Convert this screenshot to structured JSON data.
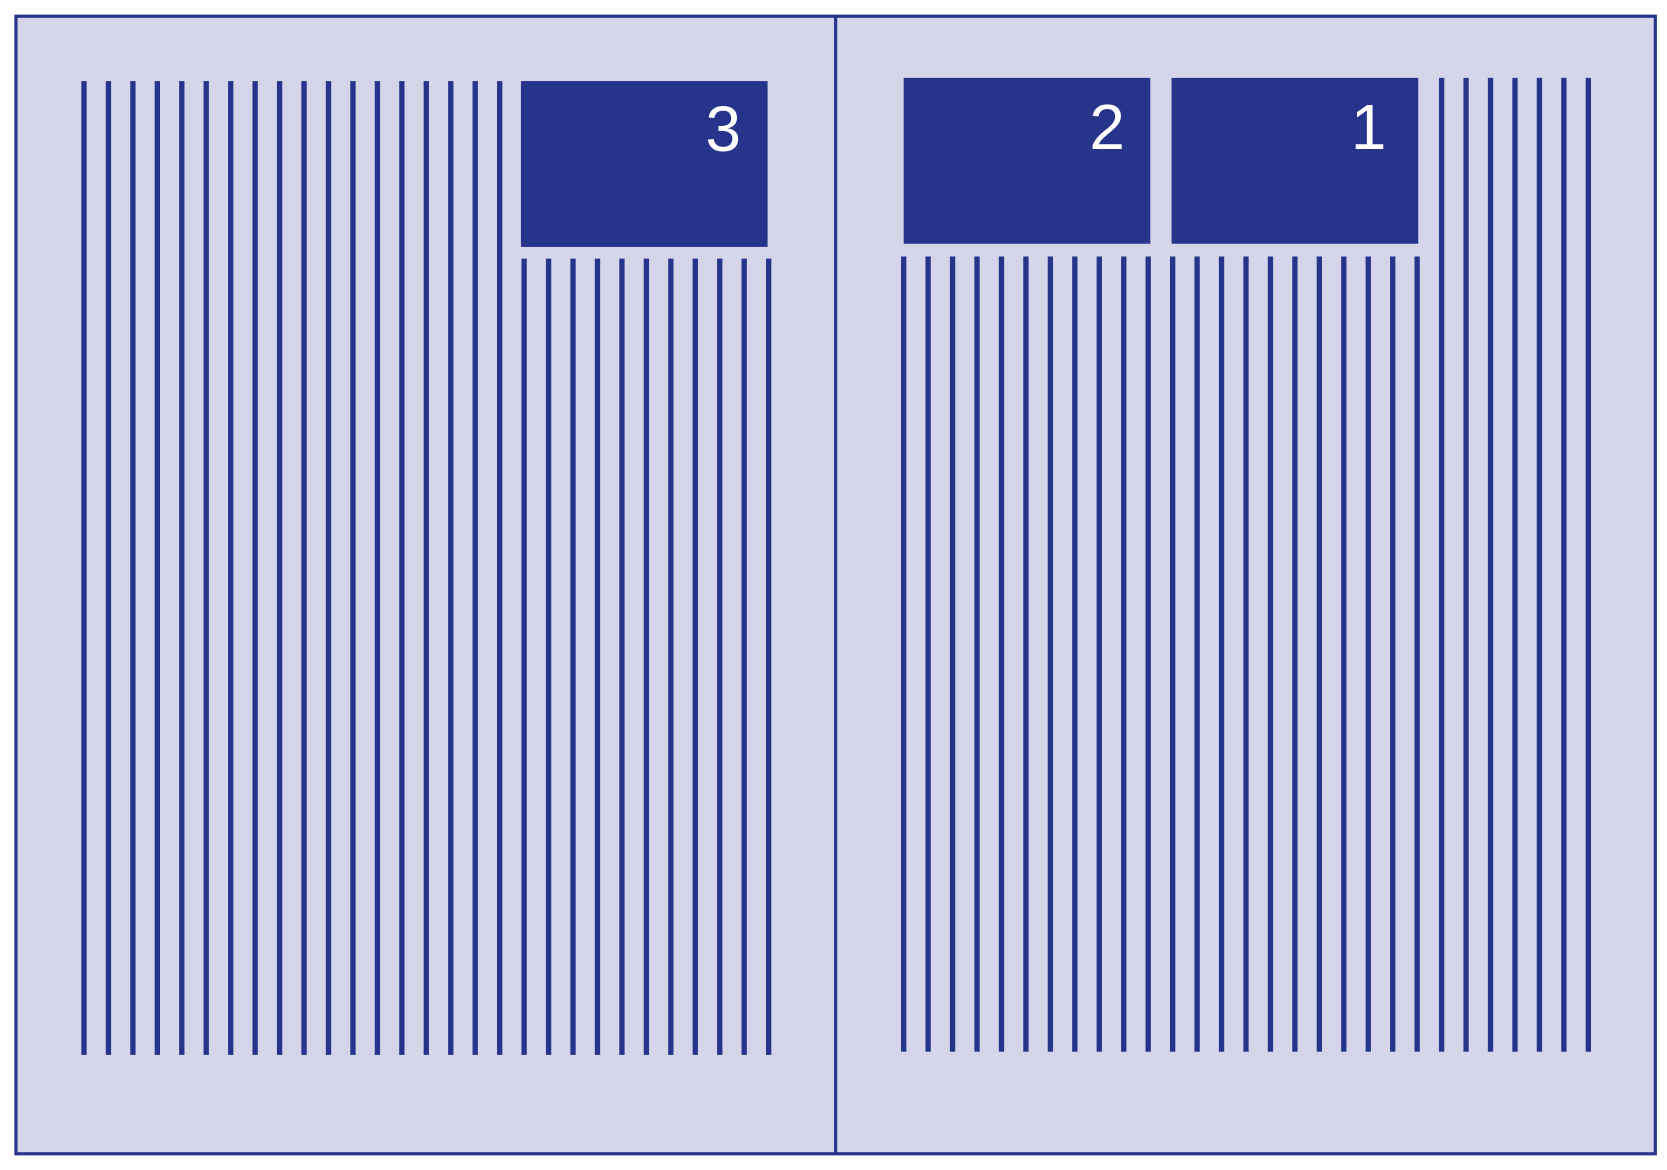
{
  "colors": {
    "ink": "#26348b",
    "paper": "#d4d5e8"
  },
  "panels": [
    {
      "label": "3"
    },
    {
      "label": "2"
    },
    {
      "label": "1"
    }
  ]
}
